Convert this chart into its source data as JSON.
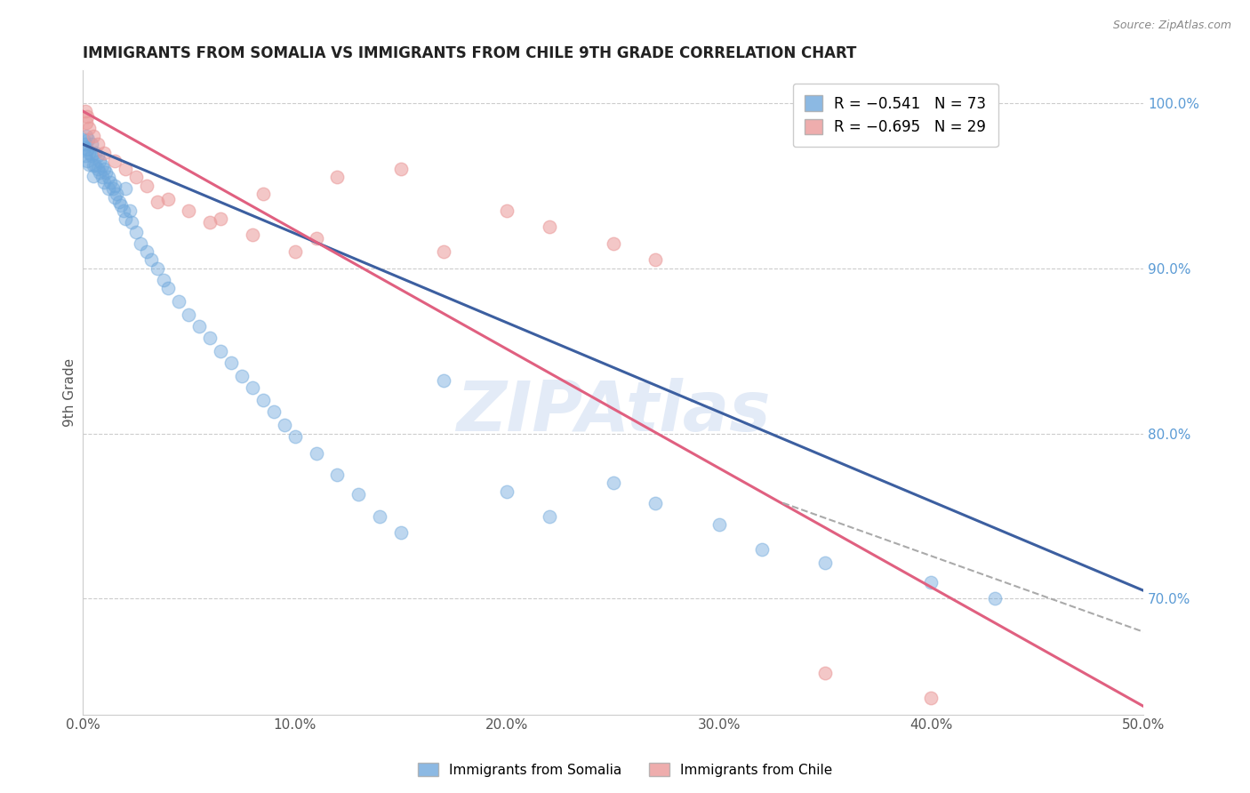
{
  "title": "IMMIGRANTS FROM SOMALIA VS IMMIGRANTS FROM CHILE 9TH GRADE CORRELATION CHART",
  "source": "Source: ZipAtlas.com",
  "ylabel": "9th Grade",
  "xlim": [
    0.0,
    50.0
  ],
  "ylim": [
    63.0,
    102.0
  ],
  "xticks": [
    0.0,
    10.0,
    20.0,
    30.0,
    40.0,
    50.0
  ],
  "xtick_labels": [
    "0.0%",
    "10.0%",
    "20.0%",
    "30.0%",
    "40.0%",
    "50.0%"
  ],
  "yticks_right": [
    100.0,
    90.0,
    80.0,
    70.0
  ],
  "ytick_labels_right": [
    "100.0%",
    "90.0%",
    "80.0%",
    "70.0%"
  ],
  "legend_somalia": "R = −0.541   N = 73",
  "legend_chile": "R = −0.695   N = 29",
  "somalia_color": "#6fa8dc",
  "chile_color": "#ea9999",
  "line_somalia_color": "#3c5fa0",
  "line_chile_color": "#e06080",
  "watermark": "ZIPAtlas",
  "somalia_points_x": [
    0.1,
    0.1,
    0.15,
    0.2,
    0.2,
    0.25,
    0.3,
    0.3,
    0.4,
    0.4,
    0.5,
    0.5,
    0.6,
    0.6,
    0.7,
    0.7,
    0.8,
    0.8,
    0.9,
    0.9,
    1.0,
    1.0,
    1.1,
    1.2,
    1.2,
    1.3,
    1.4,
    1.5,
    1.5,
    1.6,
    1.7,
    1.8,
    1.9,
    2.0,
    2.0,
    2.2,
    2.3,
    2.5,
    2.7,
    3.0,
    3.2,
    3.5,
    3.8,
    4.0,
    4.5,
    5.0,
    5.5,
    6.0,
    6.5,
    7.0,
    7.5,
    8.0,
    8.5,
    9.0,
    9.5,
    10.0,
    11.0,
    12.0,
    13.0,
    14.0,
    15.0,
    17.0,
    20.0,
    22.0,
    25.0,
    27.0,
    30.0,
    32.0,
    35.0,
    40.0,
    43.0,
    0.05,
    0.05
  ],
  "somalia_points_y": [
    97.5,
    96.8,
    98.0,
    97.2,
    96.5,
    97.8,
    97.0,
    96.3,
    97.5,
    96.8,
    96.2,
    95.6,
    97.0,
    96.2,
    96.8,
    96.0,
    96.5,
    95.8,
    96.2,
    95.5,
    96.0,
    95.2,
    95.8,
    95.5,
    94.8,
    95.2,
    94.8,
    95.0,
    94.3,
    94.5,
    94.0,
    93.8,
    93.5,
    94.8,
    93.0,
    93.5,
    92.8,
    92.2,
    91.5,
    91.0,
    90.5,
    90.0,
    89.3,
    88.8,
    88.0,
    87.2,
    86.5,
    85.8,
    85.0,
    84.3,
    83.5,
    82.8,
    82.0,
    81.3,
    80.5,
    79.8,
    78.8,
    77.5,
    76.3,
    75.0,
    74.0,
    83.2,
    76.5,
    75.0,
    77.0,
    75.8,
    74.5,
    73.0,
    72.2,
    71.0,
    70.0,
    97.8,
    97.3
  ],
  "chile_points_x": [
    0.1,
    0.15,
    0.2,
    0.3,
    0.5,
    0.7,
    1.0,
    1.5,
    2.0,
    2.5,
    3.0,
    4.0,
    5.0,
    6.0,
    8.0,
    10.0,
    12.0,
    15.0,
    17.0,
    20.0,
    22.0,
    25.0,
    27.0,
    3.5,
    6.5,
    8.5,
    11.0,
    35.0,
    40.0
  ],
  "chile_points_y": [
    99.5,
    98.8,
    99.2,
    98.5,
    98.0,
    97.5,
    97.0,
    96.5,
    96.0,
    95.5,
    95.0,
    94.2,
    93.5,
    92.8,
    92.0,
    91.0,
    95.5,
    96.0,
    91.0,
    93.5,
    92.5,
    91.5,
    90.5,
    94.0,
    93.0,
    94.5,
    91.8,
    65.5,
    64.0
  ],
  "somalia_line_x": [
    0.0,
    50.0
  ],
  "somalia_line_y": [
    97.5,
    70.5
  ],
  "chile_line_x": [
    0.0,
    50.0
  ],
  "chile_line_y": [
    99.5,
    63.5
  ],
  "dashed_line_x": [
    33.0,
    50.0
  ],
  "dashed_line_y": [
    75.8,
    68.0
  ]
}
